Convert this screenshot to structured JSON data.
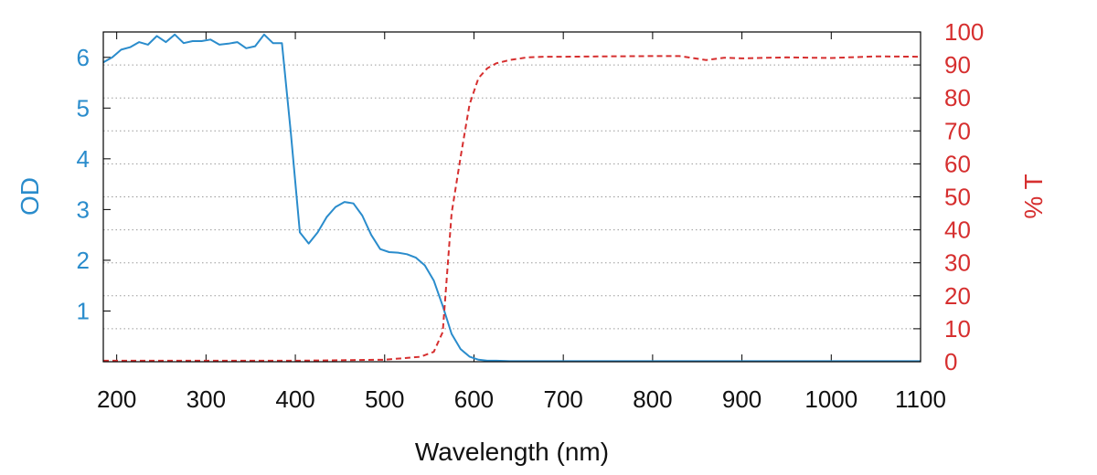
{
  "chart_data": {
    "type": "line",
    "title": "",
    "xlabel": "Wavelength (nm)",
    "ylabel": "OD",
    "y2label": "% T",
    "xlim": [
      185,
      1100
    ],
    "ylim": [
      0,
      6.5
    ],
    "y2lim": [
      0,
      100
    ],
    "x_ticks": [
      200,
      300,
      400,
      500,
      600,
      700,
      800,
      900,
      1000,
      1100
    ],
    "y_ticks": [
      1,
      2,
      3,
      4,
      5,
      6
    ],
    "y2_ticks": [
      0,
      10,
      20,
      30,
      40,
      50,
      60,
      70,
      80,
      90,
      100
    ],
    "grid": "horizontal dotted at right-axis ticks",
    "colors": {
      "od": "#2a8ccc",
      "transmission": "#d62f2f",
      "frame": "#000000",
      "grid": "#9a9a9a"
    },
    "series": [
      {
        "axis": "left",
        "style": "solid",
        "x": [
          185,
          195,
          205,
          215,
          225,
          235,
          245,
          255,
          265,
          275,
          285,
          295,
          305,
          315,
          325,
          335,
          345,
          355,
          365,
          375,
          385,
          395,
          405,
          415,
          425,
          435,
          445,
          455,
          465,
          475,
          485,
          495,
          505,
          515,
          525,
          535,
          545,
          555,
          565,
          575,
          585,
          595,
          605,
          615,
          625,
          640,
          660,
          700,
          800,
          900,
          1000,
          1100
        ],
        "y": [
          5.9,
          6.0,
          6.15,
          6.2,
          6.3,
          6.25,
          6.42,
          6.3,
          6.45,
          6.28,
          6.32,
          6.32,
          6.35,
          6.25,
          6.27,
          6.3,
          6.18,
          6.22,
          6.45,
          6.28,
          6.28,
          4.5,
          2.55,
          2.33,
          2.55,
          2.85,
          3.05,
          3.15,
          3.12,
          2.88,
          2.5,
          2.22,
          2.16,
          2.15,
          2.12,
          2.05,
          1.9,
          1.6,
          1.1,
          0.55,
          0.25,
          0.1,
          0.04,
          0.02,
          0.02,
          0.01,
          0.01,
          0.01,
          0.01,
          0.01,
          0.01,
          0.01
        ]
      },
      {
        "axis": "right",
        "style": "dashed",
        "x": [
          185,
          300,
          400,
          500,
          540,
          555,
          565,
          575,
          585,
          595,
          605,
          615,
          625,
          640,
          660,
          680,
          700,
          750,
          800,
          830,
          860,
          880,
          900,
          950,
          1000,
          1050,
          1100
        ],
        "y": [
          0.3,
          0.3,
          0.3,
          0.6,
          1.5,
          3,
          9,
          45,
          62,
          78,
          86,
          89,
          90.5,
          91.5,
          92.3,
          92.5,
          92.5,
          92.6,
          92.7,
          92.7,
          91.5,
          92.2,
          92,
          92.3,
          92.1,
          92.6,
          92.5
        ]
      }
    ]
  }
}
